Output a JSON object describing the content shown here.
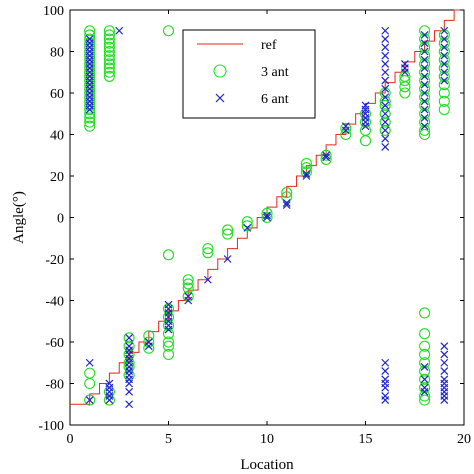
{
  "chart_data": {
    "type": "scatter",
    "xlabel": "Location",
    "ylabel": "Angle(°)",
    "xlim": [
      0,
      20
    ],
    "ylim": [
      -100,
      100
    ],
    "xticks": [
      0,
      5,
      10,
      15,
      20
    ],
    "yticks": [
      -100,
      -80,
      -60,
      -40,
      -20,
      0,
      20,
      40,
      60,
      80,
      100
    ],
    "grid": false,
    "legend_position": "top-center",
    "series": [
      {
        "name": "ref",
        "style": "line",
        "color": "#e8261c",
        "x": [
          0,
          1,
          1,
          1.5,
          1.5,
          2,
          2,
          2.5,
          2.5,
          3,
          3,
          3.5,
          3.5,
          4,
          4,
          4.5,
          4.5,
          5,
          5,
          5.5,
          5.5,
          6,
          6,
          6.5,
          6.5,
          7,
          7,
          7.5,
          7.5,
          8,
          8,
          8.5,
          8.5,
          9,
          9,
          9.5,
          9.5,
          10,
          10,
          10.5,
          10.5,
          11,
          11,
          11.5,
          11.5,
          12,
          12,
          12.5,
          12.5,
          13,
          13,
          13.5,
          13.5,
          14,
          14,
          14.5,
          14.5,
          15,
          15,
          15.5,
          15.5,
          16,
          16,
          16.5,
          16.5,
          17,
          17,
          17.5,
          17.5,
          18,
          18,
          18.5,
          18.5,
          19,
          19,
          19.5,
          19.5,
          20
        ],
        "y": [
          -90,
          -90,
          -85,
          -85,
          -80,
          -80,
          -75,
          -75,
          -70,
          -70,
          -65,
          -65,
          -60,
          -60,
          -55,
          -55,
          -50,
          -50,
          -45,
          -45,
          -40,
          -40,
          -35,
          -35,
          -30,
          -30,
          -25,
          -25,
          -20,
          -20,
          -15,
          -15,
          -10,
          -10,
          -5,
          -5,
          0,
          0,
          5,
          5,
          10,
          10,
          15,
          15,
          20,
          20,
          25,
          25,
          30,
          30,
          35,
          35,
          40,
          40,
          45,
          45,
          50,
          50,
          55,
          55,
          60,
          60,
          65,
          65,
          70,
          70,
          75,
          75,
          80,
          80,
          85,
          85,
          90,
          90,
          95,
          95,
          100,
          100
        ]
      },
      {
        "name": "3 ant",
        "style": "marker-circle",
        "color": "#22dd22",
        "points": [
          [
            1,
            90
          ],
          [
            1,
            88
          ],
          [
            1,
            86
          ],
          [
            1,
            84
          ],
          [
            1,
            82
          ],
          [
            1,
            80
          ],
          [
            1,
            78
          ],
          [
            1,
            76
          ],
          [
            1,
            74
          ],
          [
            1,
            72
          ],
          [
            1,
            70
          ],
          [
            1,
            68
          ],
          [
            1,
            66
          ],
          [
            1,
            64
          ],
          [
            1,
            62
          ],
          [
            1,
            60
          ],
          [
            1,
            58
          ],
          [
            1,
            56
          ],
          [
            1,
            54
          ],
          [
            1,
            52
          ],
          [
            1,
            50
          ],
          [
            1,
            48
          ],
          [
            1,
            46
          ],
          [
            1,
            44
          ],
          [
            1,
            -75
          ],
          [
            1,
            -80
          ],
          [
            1,
            -88
          ],
          [
            2,
            90
          ],
          [
            2,
            88
          ],
          [
            2,
            86
          ],
          [
            2,
            84
          ],
          [
            2,
            82
          ],
          [
            2,
            80
          ],
          [
            2,
            78
          ],
          [
            2,
            76
          ],
          [
            2,
            74
          ],
          [
            2,
            72
          ],
          [
            2,
            70
          ],
          [
            2,
            68
          ],
          [
            2,
            -84
          ],
          [
            2,
            -88
          ],
          [
            3,
            -58
          ],
          [
            3,
            -62
          ],
          [
            3,
            -66
          ],
          [
            3,
            -70
          ],
          [
            3,
            -72
          ],
          [
            3,
            -76
          ],
          [
            4,
            -57
          ],
          [
            4,
            -60
          ],
          [
            4,
            -63
          ],
          [
            5,
            90
          ],
          [
            5,
            -18
          ],
          [
            5,
            -44
          ],
          [
            5,
            -48
          ],
          [
            5,
            -52
          ],
          [
            5,
            -56
          ],
          [
            5,
            -60
          ],
          [
            5,
            -62
          ],
          [
            5,
            -66
          ],
          [
            6,
            -30
          ],
          [
            6,
            -32
          ],
          [
            6,
            -34
          ],
          [
            6,
            -38
          ],
          [
            7,
            -15
          ],
          [
            7,
            -17
          ],
          [
            8,
            -6
          ],
          [
            8,
            -8
          ],
          [
            9,
            -2
          ],
          [
            9,
            -4
          ],
          [
            10,
            0
          ],
          [
            10,
            2
          ],
          [
            11,
            10
          ],
          [
            11,
            12
          ],
          [
            12,
            22
          ],
          [
            12,
            24
          ],
          [
            12,
            26
          ],
          [
            13,
            28
          ],
          [
            13,
            30
          ],
          [
            14,
            40
          ],
          [
            14,
            43
          ],
          [
            15,
            37
          ],
          [
            15,
            42
          ],
          [
            15,
            46
          ],
          [
            15,
            50
          ],
          [
            16,
            42
          ],
          [
            16,
            46
          ],
          [
            16,
            50
          ],
          [
            16,
            54
          ],
          [
            16,
            56
          ],
          [
            16,
            60
          ],
          [
            17,
            60
          ],
          [
            17,
            63
          ],
          [
            17,
            66
          ],
          [
            17,
            68
          ],
          [
            18,
            90
          ],
          [
            18,
            86
          ],
          [
            18,
            82
          ],
          [
            18,
            78
          ],
          [
            18,
            74
          ],
          [
            18,
            70
          ],
          [
            18,
            66
          ],
          [
            18,
            62
          ],
          [
            18,
            58
          ],
          [
            18,
            54
          ],
          [
            18,
            50
          ],
          [
            18,
            46
          ],
          [
            18,
            42
          ],
          [
            18,
            40
          ],
          [
            18,
            -46
          ],
          [
            18,
            -56
          ],
          [
            18,
            -62
          ],
          [
            18,
            -66
          ],
          [
            18,
            -70
          ],
          [
            18,
            -74
          ],
          [
            18,
            -78
          ],
          [
            18,
            -82
          ],
          [
            18,
            -86
          ],
          [
            18,
            -88
          ],
          [
            19,
            88
          ],
          [
            19,
            84
          ],
          [
            19,
            80
          ],
          [
            19,
            76
          ],
          [
            19,
            72
          ],
          [
            19,
            68
          ],
          [
            19,
            64
          ],
          [
            19,
            60
          ],
          [
            19,
            56
          ],
          [
            19,
            52
          ]
        ]
      },
      {
        "name": "6 ant",
        "style": "marker-x",
        "color": "#1c24c8",
        "points": [
          [
            1,
            86
          ],
          [
            1,
            84
          ],
          [
            1,
            82
          ],
          [
            1,
            80
          ],
          [
            1,
            78
          ],
          [
            1,
            76
          ],
          [
            1,
            74
          ],
          [
            1,
            72
          ],
          [
            1,
            70
          ],
          [
            1,
            68
          ],
          [
            1,
            66
          ],
          [
            1,
            64
          ],
          [
            1,
            62
          ],
          [
            1,
            60
          ],
          [
            1,
            58
          ],
          [
            1,
            56
          ],
          [
            1,
            54
          ],
          [
            1,
            52
          ],
          [
            1,
            -70
          ],
          [
            1,
            -88
          ],
          [
            2,
            -80
          ],
          [
            2,
            -82
          ],
          [
            2,
            -84
          ],
          [
            2,
            -86
          ],
          [
            2,
            -88
          ],
          [
            2.5,
            90
          ],
          [
            3,
            -58
          ],
          [
            3,
            -62
          ],
          [
            3,
            -64
          ],
          [
            3,
            -66
          ],
          [
            3,
            -68
          ],
          [
            3,
            -70
          ],
          [
            3,
            -72
          ],
          [
            3,
            -74
          ],
          [
            3,
            -76
          ],
          [
            3,
            -78
          ],
          [
            3,
            -80
          ],
          [
            3,
            -84
          ],
          [
            3,
            -90
          ],
          [
            4,
            -60
          ],
          [
            4,
            -62
          ],
          [
            5,
            -42
          ],
          [
            5,
            -44
          ],
          [
            5,
            -46
          ],
          [
            5,
            -48
          ],
          [
            5,
            -50
          ],
          [
            5,
            -52
          ],
          [
            5,
            -54
          ],
          [
            6,
            -38
          ],
          [
            6,
            -40
          ],
          [
            7,
            -30
          ],
          [
            8,
            -20
          ],
          [
            9,
            -5
          ],
          [
            10,
            0
          ],
          [
            10,
            1
          ],
          [
            11,
            6
          ],
          [
            11,
            7
          ],
          [
            12,
            20
          ],
          [
            12,
            21
          ],
          [
            13,
            29
          ],
          [
            13,
            30
          ],
          [
            14,
            42
          ],
          [
            14,
            44
          ],
          [
            15,
            44
          ],
          [
            15,
            46
          ],
          [
            15,
            48
          ],
          [
            15,
            50
          ],
          [
            15,
            52
          ],
          [
            15,
            54
          ],
          [
            16,
            90
          ],
          [
            16,
            86
          ],
          [
            16,
            82
          ],
          [
            16,
            78
          ],
          [
            16,
            74
          ],
          [
            16,
            70
          ],
          [
            16,
            66
          ],
          [
            16,
            62
          ],
          [
            16,
            58
          ],
          [
            16,
            54
          ],
          [
            16,
            50
          ],
          [
            16,
            46
          ],
          [
            16,
            42
          ],
          [
            16,
            38
          ],
          [
            16,
            34
          ],
          [
            16,
            -70
          ],
          [
            16,
            -74
          ],
          [
            16,
            -78
          ],
          [
            16,
            -80
          ],
          [
            16,
            -82
          ],
          [
            16,
            -86
          ],
          [
            16,
            -88
          ],
          [
            17,
            70
          ],
          [
            17,
            72
          ],
          [
            17,
            74
          ],
          [
            18,
            88
          ],
          [
            18,
            84
          ],
          [
            18,
            80
          ],
          [
            18,
            76
          ],
          [
            18,
            72
          ],
          [
            18,
            68
          ],
          [
            18,
            64
          ],
          [
            18,
            60
          ],
          [
            18,
            56
          ],
          [
            18,
            52
          ],
          [
            18,
            48
          ],
          [
            18,
            44
          ],
          [
            18,
            -72
          ],
          [
            18,
            -78
          ],
          [
            18,
            -82
          ],
          [
            18,
            -84
          ],
          [
            19,
            90
          ],
          [
            19,
            86
          ],
          [
            19,
            82
          ],
          [
            19,
            78
          ],
          [
            19,
            74
          ],
          [
            19,
            70
          ],
          [
            19,
            66
          ],
          [
            19,
            -62
          ],
          [
            19,
            -66
          ],
          [
            19,
            -70
          ],
          [
            19,
            -74
          ],
          [
            19,
            -78
          ],
          [
            19,
            -80
          ],
          [
            19,
            -82
          ],
          [
            19,
            -84
          ],
          [
            19,
            -86
          ],
          [
            19,
            -88
          ]
        ]
      }
    ]
  }
}
